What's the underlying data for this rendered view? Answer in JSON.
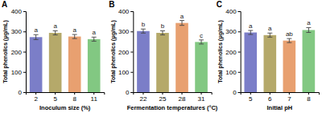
{
  "chart_data": [
    {
      "type": "bar",
      "title": "A",
      "xlabel": "Inoculum size (%)",
      "ylabel": "Total phenolics (μg/mL)",
      "categories": [
        "2",
        "5",
        "8",
        "11"
      ],
      "values": [
        272,
        293,
        275,
        262
      ],
      "errors": [
        12,
        10,
        10,
        10
      ],
      "annotations": [
        "a",
        "a",
        "a",
        "a"
      ],
      "colors": [
        "#7b7ec8",
        "#b5a96a",
        "#e8a070",
        "#82c882"
      ],
      "ylim": [
        0,
        400
      ],
      "yticks": [
        0,
        100,
        200,
        300,
        400
      ],
      "grid": false
    },
    {
      "type": "bar",
      "title": "B",
      "xlabel": "Fermentation temperatures (°C)",
      "ylabel": "Total phenolics (μg/mL)",
      "categories": [
        "22",
        "25",
        "28",
        "31"
      ],
      "values": [
        302,
        293,
        342,
        248
      ],
      "errors": [
        10,
        10,
        12,
        10
      ],
      "annotations": [
        "b",
        "b",
        "a",
        "c"
      ],
      "colors": [
        "#7b7ec8",
        "#b5a96a",
        "#e8a070",
        "#82c882"
      ],
      "ylim": [
        0,
        400
      ],
      "yticks": [
        0,
        100,
        200,
        300,
        400
      ],
      "grid": false
    },
    {
      "type": "bar",
      "title": "C",
      "xlabel": "Initial pH",
      "ylabel": "Total phenolics (μg/mL)",
      "categories": [
        "5",
        "6",
        "7",
        "8"
      ],
      "values": [
        295,
        282,
        255,
        307
      ],
      "errors": [
        10,
        10,
        10,
        12
      ],
      "annotations": [
        "a",
        "a",
        "ab",
        "a"
      ],
      "colors": [
        "#7b7ec8",
        "#b5a96a",
        "#e8a070",
        "#82c882"
      ],
      "ylim": [
        0,
        400
      ],
      "yticks": [
        0,
        100,
        200,
        300,
        400
      ],
      "grid": false
    }
  ]
}
